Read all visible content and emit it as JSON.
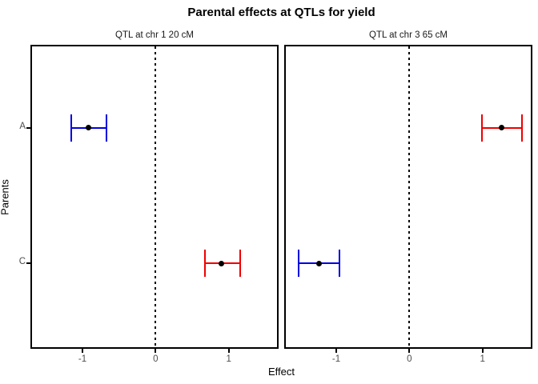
{
  "title": "Parental effects at QTLs for yield",
  "axes": {
    "x_label": "Effect",
    "y_label": "Parents"
  },
  "style": {
    "point_color": "#000000",
    "border_color": "#000000",
    "axis_text_color": "#4d4d4d",
    "blue": "#0000e0",
    "red": "#f00000"
  },
  "chart_data": {
    "type": "errorbar",
    "orientation": "horizontal",
    "title": "Parental effects at QTLs for yield",
    "xlabel": "Effect",
    "ylabel": "Parents",
    "xlim": [
      -1.69,
      1.66
    ],
    "x_tick_values": [
      -1,
      0,
      1
    ],
    "x_tick_labels": [
      "-1",
      "0",
      "1"
    ],
    "y_categories": [
      "A",
      "C"
    ],
    "reference_line_x": 0,
    "grid": "off",
    "facets": [
      {
        "label": "QTL at chr 1 20 cM",
        "estimates": [
          {
            "parent": "A",
            "value": -0.92,
            "low": -1.15,
            "high": -0.67,
            "color": "#0000e0"
          },
          {
            "parent": "C",
            "value": 0.9,
            "low": 0.68,
            "high": 1.16,
            "color": "#f00000"
          }
        ]
      },
      {
        "label": "QTL at chr 3 65 cM",
        "estimates": [
          {
            "parent": "A",
            "value": 1.26,
            "low": 0.99,
            "high": 1.54,
            "color": "#f00000"
          },
          {
            "parent": "C",
            "value": -1.24,
            "low": -1.51,
            "high": -0.96,
            "color": "#0000e0"
          }
        ]
      }
    ]
  }
}
